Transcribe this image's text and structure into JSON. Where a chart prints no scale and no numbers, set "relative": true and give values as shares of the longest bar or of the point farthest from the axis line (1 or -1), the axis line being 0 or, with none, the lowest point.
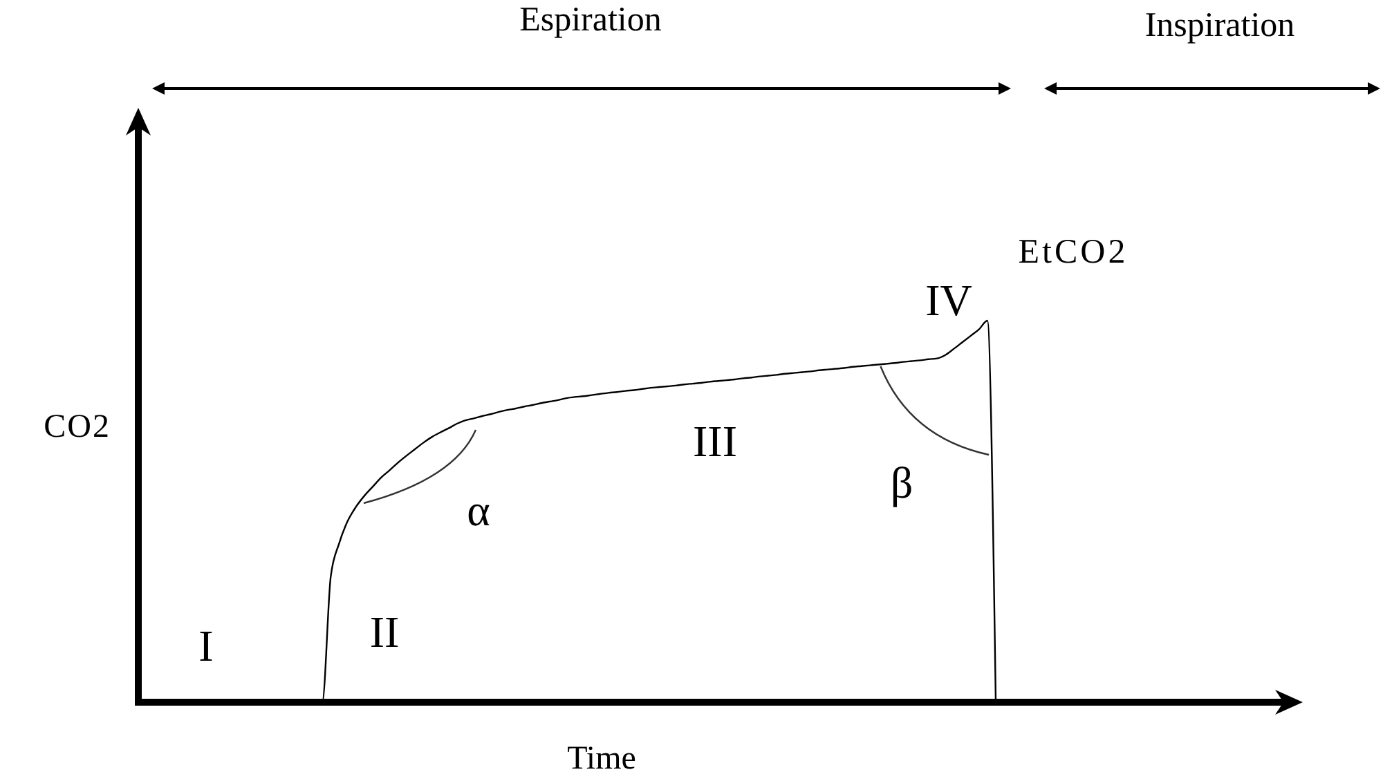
{
  "chart_data": {
    "type": "line",
    "relative": true,
    "xlabel": "Time",
    "ylabel": "CO2",
    "line_style": "solid",
    "categories": [
      null,
      null,
      null,
      null,
      null,
      null,
      null,
      null,
      null,
      null,
      null,
      null,
      null,
      null,
      null,
      null,
      null,
      null,
      null,
      null,
      null,
      null,
      null,
      null,
      null,
      null,
      null,
      null,
      null,
      null,
      null,
      null,
      null,
      null,
      null,
      null,
      null,
      null,
      null,
      null,
      null,
      null,
      null,
      null,
      null,
      null,
      null,
      null,
      null,
      null,
      null,
      null,
      null,
      null,
      null,
      null,
      null,
      null,
      null,
      null,
      null,
      null,
      null,
      null,
      null,
      null,
      null,
      null,
      null,
      null,
      null,
      null,
      null,
      null,
      null,
      null,
      null,
      null,
      null,
      null,
      null,
      null,
      null,
      null,
      null,
      null,
      null,
      null,
      null,
      null,
      null,
      null,
      null,
      null,
      null,
      null,
      null,
      null,
      null,
      null,
      null,
      null,
      null
    ],
    "series": [
      {
        "color": "#000000",
        "values": [
          0,
          0,
          0,
          0,
          0,
          0,
          0,
          0,
          0,
          0,
          0,
          0,
          0,
          0,
          0,
          0,
          0,
          0,
          0,
          0,
          0,
          0,
          0,
          0.328,
          0.416,
          0.474,
          0.512,
          0.541,
          0.565,
          0.589,
          0.608,
          0.628,
          0.646,
          0.663,
          0.68,
          0.695,
          0.707,
          0.718,
          0.73,
          0.739,
          0.744,
          0.75,
          0.755,
          0.761,
          0.766,
          0.77,
          0.775,
          0.779,
          0.784,
          0.788,
          0.792,
          0.797,
          0.8,
          0.802,
          0.805,
          0.808,
          0.811,
          0.813,
          0.816,
          0.818,
          0.821,
          0.824,
          0.826,
          0.828,
          0.83,
          0.833,
          0.835,
          0.837,
          0.84,
          0.842,
          0.844,
          0.846,
          0.849,
          0.851,
          0.854,
          0.856,
          0.858,
          0.861,
          0.863,
          0.865,
          0.867,
          0.87,
          0.872,
          0.874,
          0.876,
          0.879,
          0.881,
          0.883,
          0.885,
          0.887,
          0.889,
          0.892,
          0.894,
          0.896,
          0.899,
          0.901,
          0.91,
          0.926,
          0.943,
          0.96,
          0.977,
          1,
          0
        ]
      }
    ],
    "annotations": [
      "Espiration",
      "Inspiration",
      "I",
      "II",
      "III",
      "IV",
      "α",
      "β",
      "EtCO2"
    ]
  }
}
